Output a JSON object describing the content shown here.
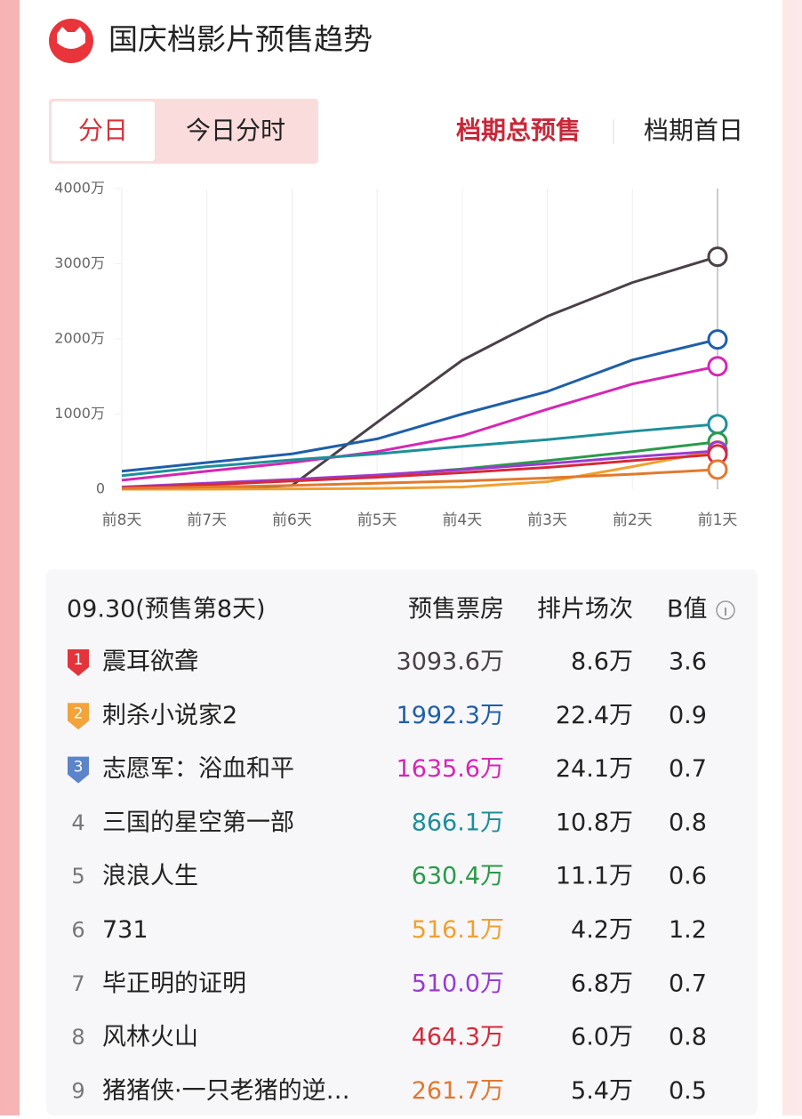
{
  "header": {
    "title": "国庆档影片预售趋势"
  },
  "tabs": [
    "分日",
    "今日分时"
  ],
  "toggles": [
    "档期总预售",
    "档期首日"
  ],
  "chart_data": {
    "type": "line",
    "categories": [
      "前8天",
      "前7天",
      "前6天",
      "前5天",
      "前4天",
      "前3天",
      "前2天",
      "前1天"
    ],
    "ylim": [
      0,
      4000
    ],
    "yticks": [
      0,
      {
        "value": 1000,
        "label": "1000万"
      },
      {
        "value": 2000,
        "label": "2000万"
      },
      {
        "value": 3000,
        "label": "3000万"
      },
      {
        "value": 4000,
        "label": "4000万"
      }
    ],
    "series": [
      {
        "color": "#4a4048",
        "values": [
          0,
          0,
          50,
          890,
          1716,
          2300,
          2750,
          3093.6
        ]
      },
      {
        "color": "#1f5fa8",
        "values": [
          240,
          355,
          470,
          670,
          1000,
          1300,
          1720,
          1992.3
        ]
      },
      {
        "color": "#d626b5",
        "values": [
          120,
          240,
          355,
          500,
          710,
          1065,
          1400,
          1635.6
        ]
      },
      {
        "color": "#1e8f9a",
        "values": [
          180,
          300,
          390,
          470,
          570,
          660,
          770,
          866.1
        ]
      },
      {
        "color": "#2a9a4a",
        "values": [
          25,
          60,
          120,
          180,
          270,
          380,
          500,
          630.4
        ]
      },
      {
        "color": "#f0a030",
        "values": [
          0,
          0,
          5,
          10,
          30,
          100,
          300,
          516.1
        ]
      },
      {
        "color": "#9a3bd0",
        "values": [
          30,
          80,
          130,
          190,
          260,
          340,
          430,
          510.0
        ]
      },
      {
        "color": "#d52a3a",
        "values": [
          20,
          60,
          110,
          160,
          220,
          290,
          380,
          464.3
        ]
      },
      {
        "color": "#e07a30",
        "values": [
          10,
          30,
          50,
          80,
          110,
          150,
          200,
          261.7
        ]
      }
    ]
  },
  "table": {
    "header": [
      "09.30(预售第8天)",
      "预售票房",
      "排片场次",
      "B值"
    ],
    "rows": [
      [
        "1",
        "震耳欲聋",
        "3093.6万",
        "8.6万",
        "3.6"
      ],
      [
        "2",
        "刺杀小说家2",
        "1992.3万",
        "22.4万",
        "0.9"
      ],
      [
        "3",
        "志愿军：浴血和平",
        "1635.6万",
        "24.1万",
        "0.7"
      ],
      [
        "4",
        "三国的星空第一部",
        "866.1万",
        "10.8万",
        "0.8"
      ],
      [
        "5",
        "浪浪人生",
        "630.4万",
        "11.1万",
        "0.6"
      ],
      [
        "6",
        "731",
        "516.1万",
        "4.2万",
        "1.2"
      ],
      [
        "7",
        "毕正明的证明",
        "510.0万",
        "6.8万",
        "0.7"
      ],
      [
        "8",
        "风林火山",
        "464.3万",
        "6.0万",
        "0.8"
      ],
      [
        "9",
        "猪猪侠·一只老猪的逆…",
        "261.7万",
        "5.4万",
        "0.5"
      ]
    ]
  }
}
